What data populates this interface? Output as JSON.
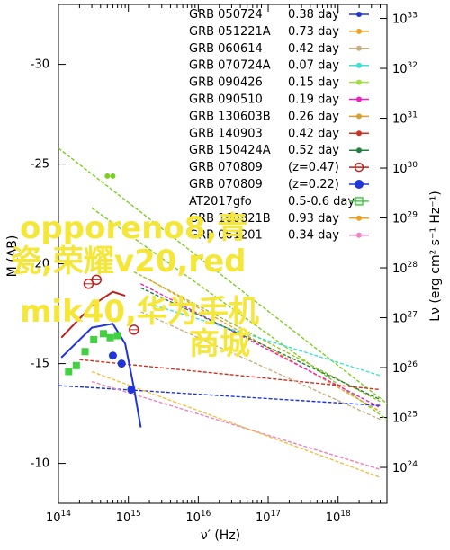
{
  "chart_data": {
    "type": "line",
    "title": "",
    "xlabel": "ν′ (Hz)",
    "ylabel_left": "M (AB)",
    "ylabel_right": "Lν (erg cm² s⁻¹ Hz⁻¹)",
    "x_scale": "log",
    "xlim": [
      100000000000000.0,
      5e+18
    ],
    "ylim_left": [
      -33,
      -8
    ],
    "left_axis_inverted": true,
    "x_ticks": [
      "10^14",
      "10^15",
      "10^16",
      "10^17",
      "10^18"
    ],
    "left_ticks": [
      -30,
      -25,
      -20,
      -15,
      -10
    ],
    "right_ticks": [
      "10^33",
      "10^32",
      "10^31",
      "10^30",
      "10^29",
      "10^28",
      "10^27",
      "10^26",
      "10^25",
      "10^24"
    ],
    "legend_position": "top-right",
    "grid": false,
    "legend": [
      {
        "name": "GRB 050724",
        "value": "0.38 day",
        "color": "#1f35d6",
        "marker": "dot"
      },
      {
        "name": "GRB 051221A",
        "value": "0.73 day",
        "color": "#f0a020",
        "marker": "dot"
      },
      {
        "name": "GRB 060614",
        "value": "0.42 day",
        "color": "#c8b080",
        "marker": "dot"
      },
      {
        "name": "GRB 070724A",
        "value": "0.07 day",
        "color": "#40e0d0",
        "marker": "dot"
      },
      {
        "name": "GRB 090426",
        "value": "0.15 day",
        "color": "#a0e040",
        "marker": "dot"
      },
      {
        "name": "GRB 090510",
        "value": "0.19 day",
        "color": "#f020c0",
        "marker": "dot"
      },
      {
        "name": "GRB 130603B",
        "value": "0.26 day",
        "color": "#d4a030",
        "marker": "dot"
      },
      {
        "name": "GRB 140903",
        "value": "0.42 day",
        "color": "#d03020",
        "marker": "dot"
      },
      {
        "name": "GRB 150424A",
        "value": "0.52 day",
        "color": "#208040",
        "marker": "dot"
      },
      {
        "name": "GRB 070809",
        "value": "(z=0.47)",
        "color": "#c0201c",
        "marker": "open-circle"
      },
      {
        "name": "GRB 070809",
        "value": "(z=0.22)",
        "color": "#1f35d6",
        "marker": "filled-circle"
      },
      {
        "name": "AT2017gfo",
        "value": "0.5-0.6 day",
        "color": "#40d040",
        "marker": "square"
      },
      {
        "name": "GRB 160821B",
        "value": "0.93 day",
        "color": "#f0a020",
        "marker": "dot"
      },
      {
        "name": "GRB 061201",
        "value": "0.34 day",
        "color": "#f080c0",
        "marker": "dot"
      }
    ],
    "series": [
      {
        "color": "#7cd020",
        "x": [
          100000000000000.0,
          5e+18
        ],
        "y": [
          -25.8,
          -13.0
        ]
      },
      {
        "color": "#7cd020",
        "x": [
          300000000000000.0,
          5e+18
        ],
        "y": [
          -22.8,
          -12.2
        ]
      },
      {
        "color": "#a0c030",
        "x": [
          1200000000000000.0,
          4e+18
        ],
        "y": [
          -19.6,
          -13.1
        ]
      },
      {
        "color": "#f0a020",
        "x": [
          2000000000000000.0,
          4e+18
        ],
        "y": [
          -19.2,
          -12.6
        ]
      },
      {
        "color": "#f020c0",
        "x": [
          1500000000000000.0,
          4e+18
        ],
        "y": [
          -19.0,
          -12.8
        ]
      },
      {
        "color": "#40e0d0",
        "x": [
          2000000000000000.0,
          4e+18
        ],
        "y": [
          -18.0,
          -14.4
        ]
      },
      {
        "color": "#208040",
        "x": [
          1500000000000000.0,
          4e+18
        ],
        "y": [
          -18.8,
          -13.2
        ]
      },
      {
        "color": "#d03020",
        "x": [
          200000000000000.0,
          4e+18
        ],
        "y": [
          -15.2,
          -13.7
        ]
      },
      {
        "color": "#1f35d6",
        "x": [
          100000000000000.0,
          4e+18
        ],
        "y": [
          -13.9,
          -12.9
        ]
      },
      {
        "color": "#f080c0",
        "x": [
          300000000000000.0,
          4e+18
        ],
        "y": [
          -14.1,
          -9.7
        ]
      },
      {
        "color": "#f0c040",
        "x": [
          300000000000000.0,
          4e+18
        ],
        "y": [
          -14.6,
          -9.3
        ]
      },
      {
        "color": "#c8b080",
        "x": [
          1500000000000000.0,
          4e+18
        ],
        "y": [
          -17.6,
          -12.2
        ]
      }
    ],
    "kilonova_curves": [
      {
        "color": "#1f35d6",
        "x": [
          110000000000000.0,
          300000000000000.0,
          600000000000000.0,
          900000000000000.0,
          1200000000000000.0,
          1500000000000000.0
        ],
        "y": [
          -15.3,
          -16.8,
          -17.0,
          -16.0,
          -13.8,
          -11.8
        ]
      },
      {
        "color": "#c0201c",
        "x": [
          110000000000000.0,
          300000000000000.0,
          600000000000000.0,
          900000000000000.0
        ],
        "y": [
          -16.3,
          -17.9,
          -18.6,
          -18.4
        ]
      }
    ],
    "points": [
      {
        "color": "#40d040",
        "marker": "square",
        "x": [
          140000000000000.0,
          180000000000000.0,
          240000000000000.0,
          320000000000000.0,
          440000000000000.0,
          550000000000000.0,
          700000000000000.0
        ],
        "y": [
          -14.6,
          -14.9,
          -15.6,
          -16.2,
          -16.5,
          -16.3,
          -16.4
        ]
      },
      {
        "color": "#1f35d6",
        "marker": "filled-circle",
        "x": [
          600000000000000.0,
          800000000000000.0,
          1100000000000000.0
        ],
        "y": [
          -15.4,
          -15.0,
          -13.7
        ]
      },
      {
        "color": "#c0201c",
        "marker": "open-circle",
        "x": [
          270000000000000.0,
          350000000000000.0,
          1200000000000000.0
        ],
        "y": [
          -19.0,
          -19.2,
          -16.7
        ]
      },
      {
        "color": "#7cd020",
        "marker": "dot",
        "x": [
          500000000000000.0,
          600000000000000.0
        ],
        "y": [
          -24.4,
          -24.4
        ]
      }
    ],
    "overlay_text": [
      "opporeno8,青",
      "瓷,荣耀v20,red",
      "mik40,华为手机",
      "商城"
    ]
  }
}
